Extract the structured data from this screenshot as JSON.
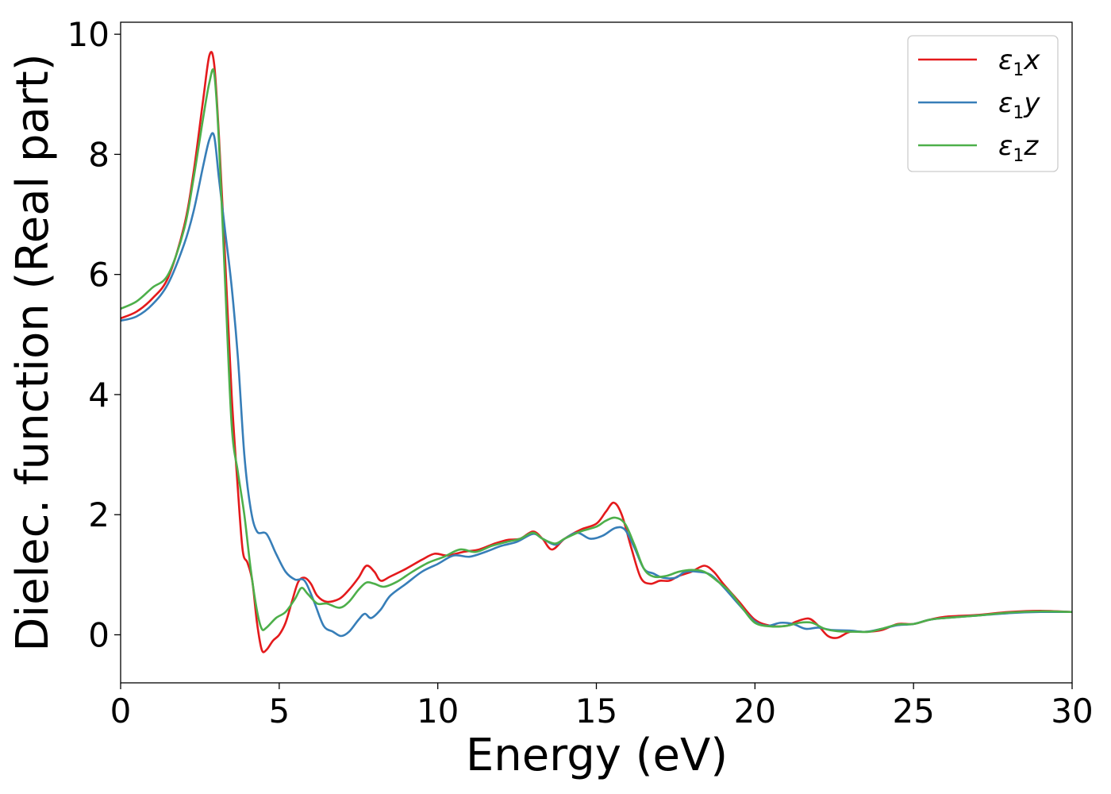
{
  "chart_data": {
    "type": "line",
    "title": "",
    "xlabel": "Energy (eV)",
    "ylabel": "Dielec. function (Real part)",
    "xlim": [
      0,
      30
    ],
    "ylim": [
      -0.8,
      10.2
    ],
    "xticks": [
      0,
      5,
      10,
      15,
      20,
      25,
      30
    ],
    "yticks": [
      0,
      2,
      4,
      6,
      8,
      10
    ],
    "grid": false,
    "legend_position": "top-right",
    "series": [
      {
        "name": "ε1x",
        "base": "ε",
        "sub": "1",
        "axis": "x",
        "color": "#e41a1c",
        "points": [
          [
            0,
            5.27
          ],
          [
            0.5,
            5.38
          ],
          [
            1.0,
            5.6
          ],
          [
            1.5,
            5.95
          ],
          [
            2.0,
            6.8
          ],
          [
            2.3,
            7.7
          ],
          [
            2.6,
            8.9
          ],
          [
            2.8,
            9.65
          ],
          [
            2.95,
            9.5
          ],
          [
            3.1,
            8.3
          ],
          [
            3.3,
            6.2
          ],
          [
            3.5,
            4.0
          ],
          [
            3.7,
            2.4
          ],
          [
            3.85,
            1.4
          ],
          [
            4.0,
            1.2
          ],
          [
            4.15,
            0.9
          ],
          [
            4.3,
            0.2
          ],
          [
            4.45,
            -0.25
          ],
          [
            4.6,
            -0.25
          ],
          [
            4.8,
            -0.1
          ],
          [
            5.0,
            0.0
          ],
          [
            5.2,
            0.2
          ],
          [
            5.4,
            0.55
          ],
          [
            5.6,
            0.88
          ],
          [
            5.8,
            0.95
          ],
          [
            6.0,
            0.85
          ],
          [
            6.2,
            0.65
          ],
          [
            6.5,
            0.55
          ],
          [
            6.9,
            0.6
          ],
          [
            7.2,
            0.75
          ],
          [
            7.5,
            0.95
          ],
          [
            7.75,
            1.15
          ],
          [
            8.0,
            1.05
          ],
          [
            8.2,
            0.9
          ],
          [
            8.5,
            0.97
          ],
          [
            9.0,
            1.1
          ],
          [
            9.5,
            1.25
          ],
          [
            9.9,
            1.35
          ],
          [
            10.3,
            1.32
          ],
          [
            10.8,
            1.38
          ],
          [
            11.3,
            1.42
          ],
          [
            11.8,
            1.52
          ],
          [
            12.2,
            1.58
          ],
          [
            12.6,
            1.6
          ],
          [
            13.0,
            1.72
          ],
          [
            13.3,
            1.6
          ],
          [
            13.6,
            1.42
          ],
          [
            14.0,
            1.6
          ],
          [
            14.5,
            1.75
          ],
          [
            15.0,
            1.85
          ],
          [
            15.3,
            2.05
          ],
          [
            15.55,
            2.2
          ],
          [
            15.8,
            2.0
          ],
          [
            16.1,
            1.45
          ],
          [
            16.4,
            0.95
          ],
          [
            16.7,
            0.85
          ],
          [
            17.0,
            0.9
          ],
          [
            17.3,
            0.9
          ],
          [
            17.6,
            0.98
          ],
          [
            18.0,
            1.05
          ],
          [
            18.4,
            1.15
          ],
          [
            18.7,
            1.05
          ],
          [
            19.0,
            0.85
          ],
          [
            19.5,
            0.55
          ],
          [
            20.0,
            0.25
          ],
          [
            20.5,
            0.15
          ],
          [
            21.0,
            0.15
          ],
          [
            21.3,
            0.22
          ],
          [
            21.7,
            0.27
          ],
          [
            22.0,
            0.15
          ],
          [
            22.3,
            -0.02
          ],
          [
            22.6,
            -0.05
          ],
          [
            23.0,
            0.05
          ],
          [
            23.5,
            0.05
          ],
          [
            24.0,
            0.08
          ],
          [
            24.5,
            0.18
          ],
          [
            25.0,
            0.18
          ],
          [
            25.5,
            0.25
          ],
          [
            26.0,
            0.3
          ],
          [
            27.0,
            0.33
          ],
          [
            28.0,
            0.38
          ],
          [
            29.0,
            0.4
          ],
          [
            30.0,
            0.38
          ]
        ]
      },
      {
        "name": "ε1y",
        "base": "ε",
        "sub": "1",
        "axis": "y",
        "color": "#377eb8",
        "points": [
          [
            0,
            5.23
          ],
          [
            0.5,
            5.3
          ],
          [
            1.0,
            5.5
          ],
          [
            1.5,
            5.85
          ],
          [
            2.0,
            6.5
          ],
          [
            2.3,
            7.05
          ],
          [
            2.6,
            7.8
          ],
          [
            2.8,
            8.25
          ],
          [
            2.95,
            8.3
          ],
          [
            3.1,
            7.6
          ],
          [
            3.3,
            6.7
          ],
          [
            3.5,
            5.8
          ],
          [
            3.7,
            4.6
          ],
          [
            3.9,
            3.0
          ],
          [
            4.1,
            2.1
          ],
          [
            4.3,
            1.72
          ],
          [
            4.6,
            1.68
          ],
          [
            4.9,
            1.35
          ],
          [
            5.2,
            1.05
          ],
          [
            5.5,
            0.92
          ],
          [
            5.8,
            0.9
          ],
          [
            6.1,
            0.55
          ],
          [
            6.4,
            0.15
          ],
          [
            6.7,
            0.05
          ],
          [
            6.95,
            -0.02
          ],
          [
            7.2,
            0.05
          ],
          [
            7.5,
            0.25
          ],
          [
            7.7,
            0.35
          ],
          [
            7.9,
            0.28
          ],
          [
            8.2,
            0.42
          ],
          [
            8.5,
            0.65
          ],
          [
            9.0,
            0.85
          ],
          [
            9.5,
            1.05
          ],
          [
            10.0,
            1.18
          ],
          [
            10.5,
            1.32
          ],
          [
            11.0,
            1.3
          ],
          [
            11.5,
            1.38
          ],
          [
            12.0,
            1.48
          ],
          [
            12.5,
            1.55
          ],
          [
            13.0,
            1.68
          ],
          [
            13.3,
            1.6
          ],
          [
            13.7,
            1.5
          ],
          [
            14.0,
            1.6
          ],
          [
            14.4,
            1.7
          ],
          [
            14.8,
            1.6
          ],
          [
            15.2,
            1.65
          ],
          [
            15.6,
            1.78
          ],
          [
            15.9,
            1.75
          ],
          [
            16.2,
            1.45
          ],
          [
            16.5,
            1.1
          ],
          [
            16.8,
            1.02
          ],
          [
            17.1,
            0.95
          ],
          [
            17.5,
            0.95
          ],
          [
            17.8,
            1.05
          ],
          [
            18.2,
            1.05
          ],
          [
            18.6,
            1.0
          ],
          [
            19.0,
            0.8
          ],
          [
            19.5,
            0.5
          ],
          [
            20.0,
            0.22
          ],
          [
            20.4,
            0.15
          ],
          [
            20.8,
            0.2
          ],
          [
            21.2,
            0.18
          ],
          [
            21.6,
            0.1
          ],
          [
            22.0,
            0.12
          ],
          [
            22.4,
            0.08
          ],
          [
            23.0,
            0.07
          ],
          [
            23.5,
            0.05
          ],
          [
            24.0,
            0.1
          ],
          [
            24.5,
            0.16
          ],
          [
            25.0,
            0.18
          ],
          [
            25.5,
            0.25
          ],
          [
            26.0,
            0.28
          ],
          [
            27.0,
            0.32
          ],
          [
            28.0,
            0.36
          ],
          [
            29.0,
            0.38
          ],
          [
            30.0,
            0.38
          ]
        ]
      },
      {
        "name": "ε1z",
        "base": "ε",
        "sub": "1",
        "axis": "z",
        "color": "#4daf4a",
        "points": [
          [
            0,
            5.43
          ],
          [
            0.5,
            5.55
          ],
          [
            1.0,
            5.78
          ],
          [
            1.5,
            6.0
          ],
          [
            2.0,
            6.75
          ],
          [
            2.3,
            7.6
          ],
          [
            2.6,
            8.6
          ],
          [
            2.8,
            9.2
          ],
          [
            2.95,
            9.35
          ],
          [
            3.1,
            8.2
          ],
          [
            3.3,
            5.8
          ],
          [
            3.5,
            3.5
          ],
          [
            3.7,
            2.7
          ],
          [
            3.9,
            2.0
          ],
          [
            4.1,
            1.1
          ],
          [
            4.3,
            0.4
          ],
          [
            4.45,
            0.1
          ],
          [
            4.6,
            0.12
          ],
          [
            4.9,
            0.28
          ],
          [
            5.2,
            0.38
          ],
          [
            5.5,
            0.6
          ],
          [
            5.7,
            0.78
          ],
          [
            5.9,
            0.68
          ],
          [
            6.2,
            0.52
          ],
          [
            6.5,
            0.52
          ],
          [
            6.9,
            0.45
          ],
          [
            7.2,
            0.55
          ],
          [
            7.5,
            0.75
          ],
          [
            7.75,
            0.87
          ],
          [
            8.0,
            0.85
          ],
          [
            8.3,
            0.8
          ],
          [
            8.7,
            0.88
          ],
          [
            9.2,
            1.05
          ],
          [
            9.7,
            1.2
          ],
          [
            10.2,
            1.3
          ],
          [
            10.7,
            1.42
          ],
          [
            11.2,
            1.38
          ],
          [
            11.7,
            1.48
          ],
          [
            12.2,
            1.55
          ],
          [
            12.6,
            1.6
          ],
          [
            13.0,
            1.7
          ],
          [
            13.3,
            1.6
          ],
          [
            13.7,
            1.52
          ],
          [
            14.0,
            1.6
          ],
          [
            14.5,
            1.72
          ],
          [
            15.0,
            1.8
          ],
          [
            15.3,
            1.9
          ],
          [
            15.6,
            1.95
          ],
          [
            15.9,
            1.85
          ],
          [
            16.2,
            1.5
          ],
          [
            16.5,
            1.1
          ],
          [
            16.8,
            0.97
          ],
          [
            17.2,
            0.98
          ],
          [
            17.6,
            1.05
          ],
          [
            18.0,
            1.08
          ],
          [
            18.4,
            1.05
          ],
          [
            18.8,
            0.9
          ],
          [
            19.2,
            0.72
          ],
          [
            19.6,
            0.45
          ],
          [
            20.0,
            0.2
          ],
          [
            20.5,
            0.14
          ],
          [
            21.0,
            0.15
          ],
          [
            21.4,
            0.2
          ],
          [
            21.8,
            0.2
          ],
          [
            22.2,
            0.1
          ],
          [
            22.6,
            0.06
          ],
          [
            23.2,
            0.05
          ],
          [
            23.6,
            0.05
          ],
          [
            24.0,
            0.1
          ],
          [
            24.5,
            0.17
          ],
          [
            25.0,
            0.18
          ],
          [
            25.5,
            0.25
          ],
          [
            26.0,
            0.28
          ],
          [
            27.0,
            0.32
          ],
          [
            28.0,
            0.37
          ],
          [
            29.0,
            0.39
          ],
          [
            30.0,
            0.38
          ]
        ]
      }
    ]
  }
}
